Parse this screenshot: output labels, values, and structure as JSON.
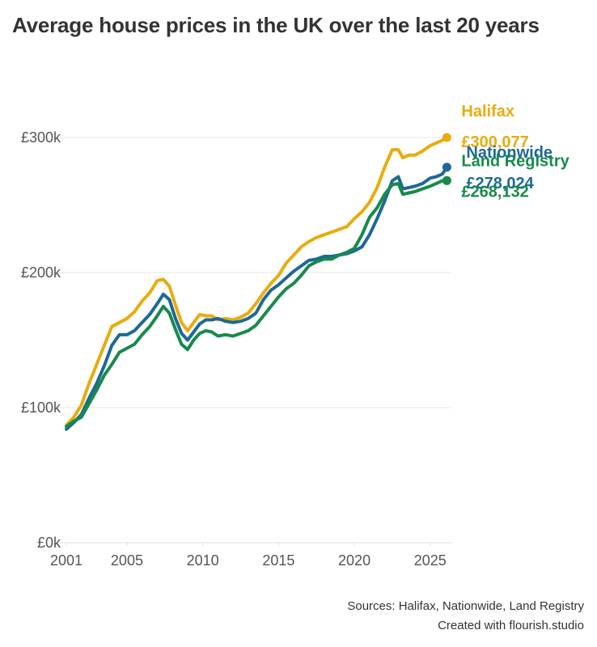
{
  "title": "Average house prices in the UK over the last 20 years",
  "footer": {
    "sources": "Sources: Halifax, Nationwide, Land Registry",
    "credit": "Created with flourish.studio"
  },
  "chart_data": {
    "type": "line",
    "title": "Average house prices in the UK over the last 20 years",
    "xlabel": "",
    "ylabel": "",
    "xlim": [
      2001,
      2026.4
    ],
    "ylim": [
      0,
      330000
    ],
    "x_ticks": [
      {
        "value": 2001,
        "label": "2001"
      },
      {
        "value": 2005,
        "label": "2005"
      },
      {
        "value": 2010,
        "label": "2010"
      },
      {
        "value": 2015,
        "label": "2015"
      },
      {
        "value": 2020,
        "label": "2020"
      },
      {
        "value": 2025,
        "label": "2025"
      }
    ],
    "y_ticks": [
      {
        "value": 0,
        "label": "£0k"
      },
      {
        "value": 100000,
        "label": "£100k"
      },
      {
        "value": 200000,
        "label": "£200k"
      },
      {
        "value": 300000,
        "label": "£300k"
      }
    ],
    "grid": true,
    "legend": "direct labels at line ends",
    "series": [
      {
        "name": "Halifax",
        "end_label": "£300,077",
        "color": "#e8ac0e",
        "x": [
          2001.0,
          2001.5,
          2002.0,
          2002.5,
          2003.0,
          2003.5,
          2004.0,
          2004.5,
          2005.0,
          2005.5,
          2006.0,
          2006.5,
          2007.0,
          2007.4,
          2007.8,
          2008.2,
          2008.6,
          2009.0,
          2009.4,
          2009.8,
          2010.2,
          2010.6,
          2011.0,
          2011.5,
          2012.0,
          2012.5,
          2013.0,
          2013.5,
          2014.0,
          2014.5,
          2015.0,
          2015.5,
          2016.0,
          2016.5,
          2017.0,
          2017.5,
          2018.0,
          2018.5,
          2019.0,
          2019.5,
          2020.0,
          2020.5,
          2021.0,
          2021.5,
          2022.0,
          2022.5,
          2022.9,
          2023.2,
          2023.6,
          2024.0,
          2024.5,
          2025.0,
          2025.4,
          2025.8,
          2026.1
        ],
        "values": [
          87000,
          93000,
          102000,
          118000,
          132000,
          146000,
          160000,
          163000,
          166000,
          171000,
          179000,
          185000,
          194000,
          195000,
          190000,
          176000,
          163000,
          157000,
          163000,
          169000,
          168000,
          168000,
          165000,
          166000,
          165000,
          167000,
          170000,
          177000,
          185000,
          192000,
          198000,
          207000,
          213000,
          219000,
          223000,
          226000,
          228000,
          230000,
          232000,
          234000,
          240000,
          245000,
          252000,
          263000,
          278000,
          291000,
          291000,
          285000,
          287000,
          287000,
          290000,
          294000,
          296000,
          298000,
          300077
        ]
      },
      {
        "name": "Nationwide",
        "end_label": "£278,024",
        "color": "#1d6996",
        "x": [
          2001.0,
          2001.5,
          2002.0,
          2002.5,
          2003.0,
          2003.5,
          2004.0,
          2004.5,
          2005.0,
          2005.5,
          2006.0,
          2006.5,
          2007.0,
          2007.4,
          2007.8,
          2008.2,
          2008.6,
          2009.0,
          2009.4,
          2009.8,
          2010.2,
          2010.6,
          2011.0,
          2011.5,
          2012.0,
          2012.5,
          2013.0,
          2013.5,
          2014.0,
          2014.5,
          2015.0,
          2015.5,
          2016.0,
          2016.5,
          2017.0,
          2017.5,
          2018.0,
          2018.5,
          2019.0,
          2019.5,
          2020.0,
          2020.5,
          2021.0,
          2021.5,
          2022.0,
          2022.5,
          2022.9,
          2023.2,
          2023.6,
          2024.0,
          2024.5,
          2025.0,
          2025.4,
          2025.8,
          2026.1
        ],
        "values": [
          84000,
          89000,
          95000,
          107000,
          118000,
          131000,
          146000,
          154000,
          154000,
          157000,
          163000,
          169000,
          177000,
          184000,
          180000,
          166000,
          155000,
          150000,
          156000,
          162000,
          165000,
          165000,
          166000,
          164000,
          163000,
          164000,
          166000,
          170000,
          180000,
          187000,
          191000,
          196000,
          201000,
          205000,
          209000,
          210000,
          212000,
          212000,
          213000,
          214000,
          216000,
          219000,
          228000,
          240000,
          253000,
          268000,
          271000,
          262000,
          263000,
          264000,
          266000,
          270000,
          271000,
          273000,
          278024
        ]
      },
      {
        "name": "Land Registry",
        "end_label": "£268,132",
        "color": "#178a4b",
        "x": [
          2001.0,
          2001.5,
          2002.0,
          2002.5,
          2003.0,
          2003.5,
          2004.0,
          2004.5,
          2005.0,
          2005.5,
          2006.0,
          2006.5,
          2007.0,
          2007.4,
          2007.8,
          2008.2,
          2008.6,
          2009.0,
          2009.4,
          2009.8,
          2010.2,
          2010.6,
          2011.0,
          2011.5,
          2012.0,
          2012.5,
          2013.0,
          2013.5,
          2014.0,
          2014.5,
          2015.0,
          2015.5,
          2016.0,
          2016.5,
          2017.0,
          2017.5,
          2018.0,
          2018.5,
          2019.0,
          2019.5,
          2020.0,
          2020.5,
          2021.0,
          2021.5,
          2022.0,
          2022.5,
          2022.9,
          2023.2,
          2023.6,
          2024.0,
          2024.5,
          2025.0,
          2025.4,
          2025.8,
          2026.1
        ],
        "values": [
          86000,
          90000,
          93000,
          103000,
          113000,
          124000,
          132000,
          141000,
          144000,
          147000,
          154000,
          160000,
          168000,
          175000,
          170000,
          158000,
          147000,
          143000,
          150000,
          155000,
          157000,
          156000,
          153000,
          154000,
          153000,
          155000,
          157000,
          161000,
          168000,
          175000,
          182000,
          188000,
          192000,
          198000,
          205000,
          208000,
          210000,
          210000,
          213000,
          215000,
          218000,
          228000,
          241000,
          248000,
          258000,
          265000,
          266000,
          258000,
          259000,
          260000,
          262000,
          264000,
          266000,
          268000,
          268132
        ]
      }
    ]
  }
}
